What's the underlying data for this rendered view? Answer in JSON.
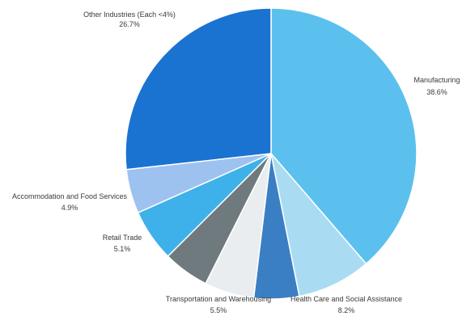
{
  "chart_data": {
    "type": "pie",
    "slices": [
      {
        "label": "Manufacturing",
        "value_text": "38.6%",
        "value": 38.6,
        "color": "#5bc0ee"
      },
      {
        "label": "Health Care and Social Assistance",
        "value_text": "8.2%",
        "value": 8.2,
        "color": "#a9dcf3"
      },
      {
        "label": "",
        "value_text": "",
        "value": 5.0,
        "color": "#3a7fc4"
      },
      {
        "label": "Transportation and Warehousing",
        "value_text": "5.5%",
        "value": 5.5,
        "color": "#e9edef"
      },
      {
        "label": "Retail Trade",
        "value_text": "5.1%",
        "value": 5.1,
        "color": "#6f7a7e"
      },
      {
        "label": "",
        "value_text": "",
        "value": 5.8,
        "color": "#3fb1ea"
      },
      {
        "label": "Accommodation and Food Services",
        "value_text": "4.9%",
        "value": 4.9,
        "color": "#9ec2f0"
      },
      {
        "label": "Other Industries (Each <4%)",
        "value_text": "26.7%",
        "value": 26.7,
        "color": "#1a73d0"
      }
    ]
  }
}
